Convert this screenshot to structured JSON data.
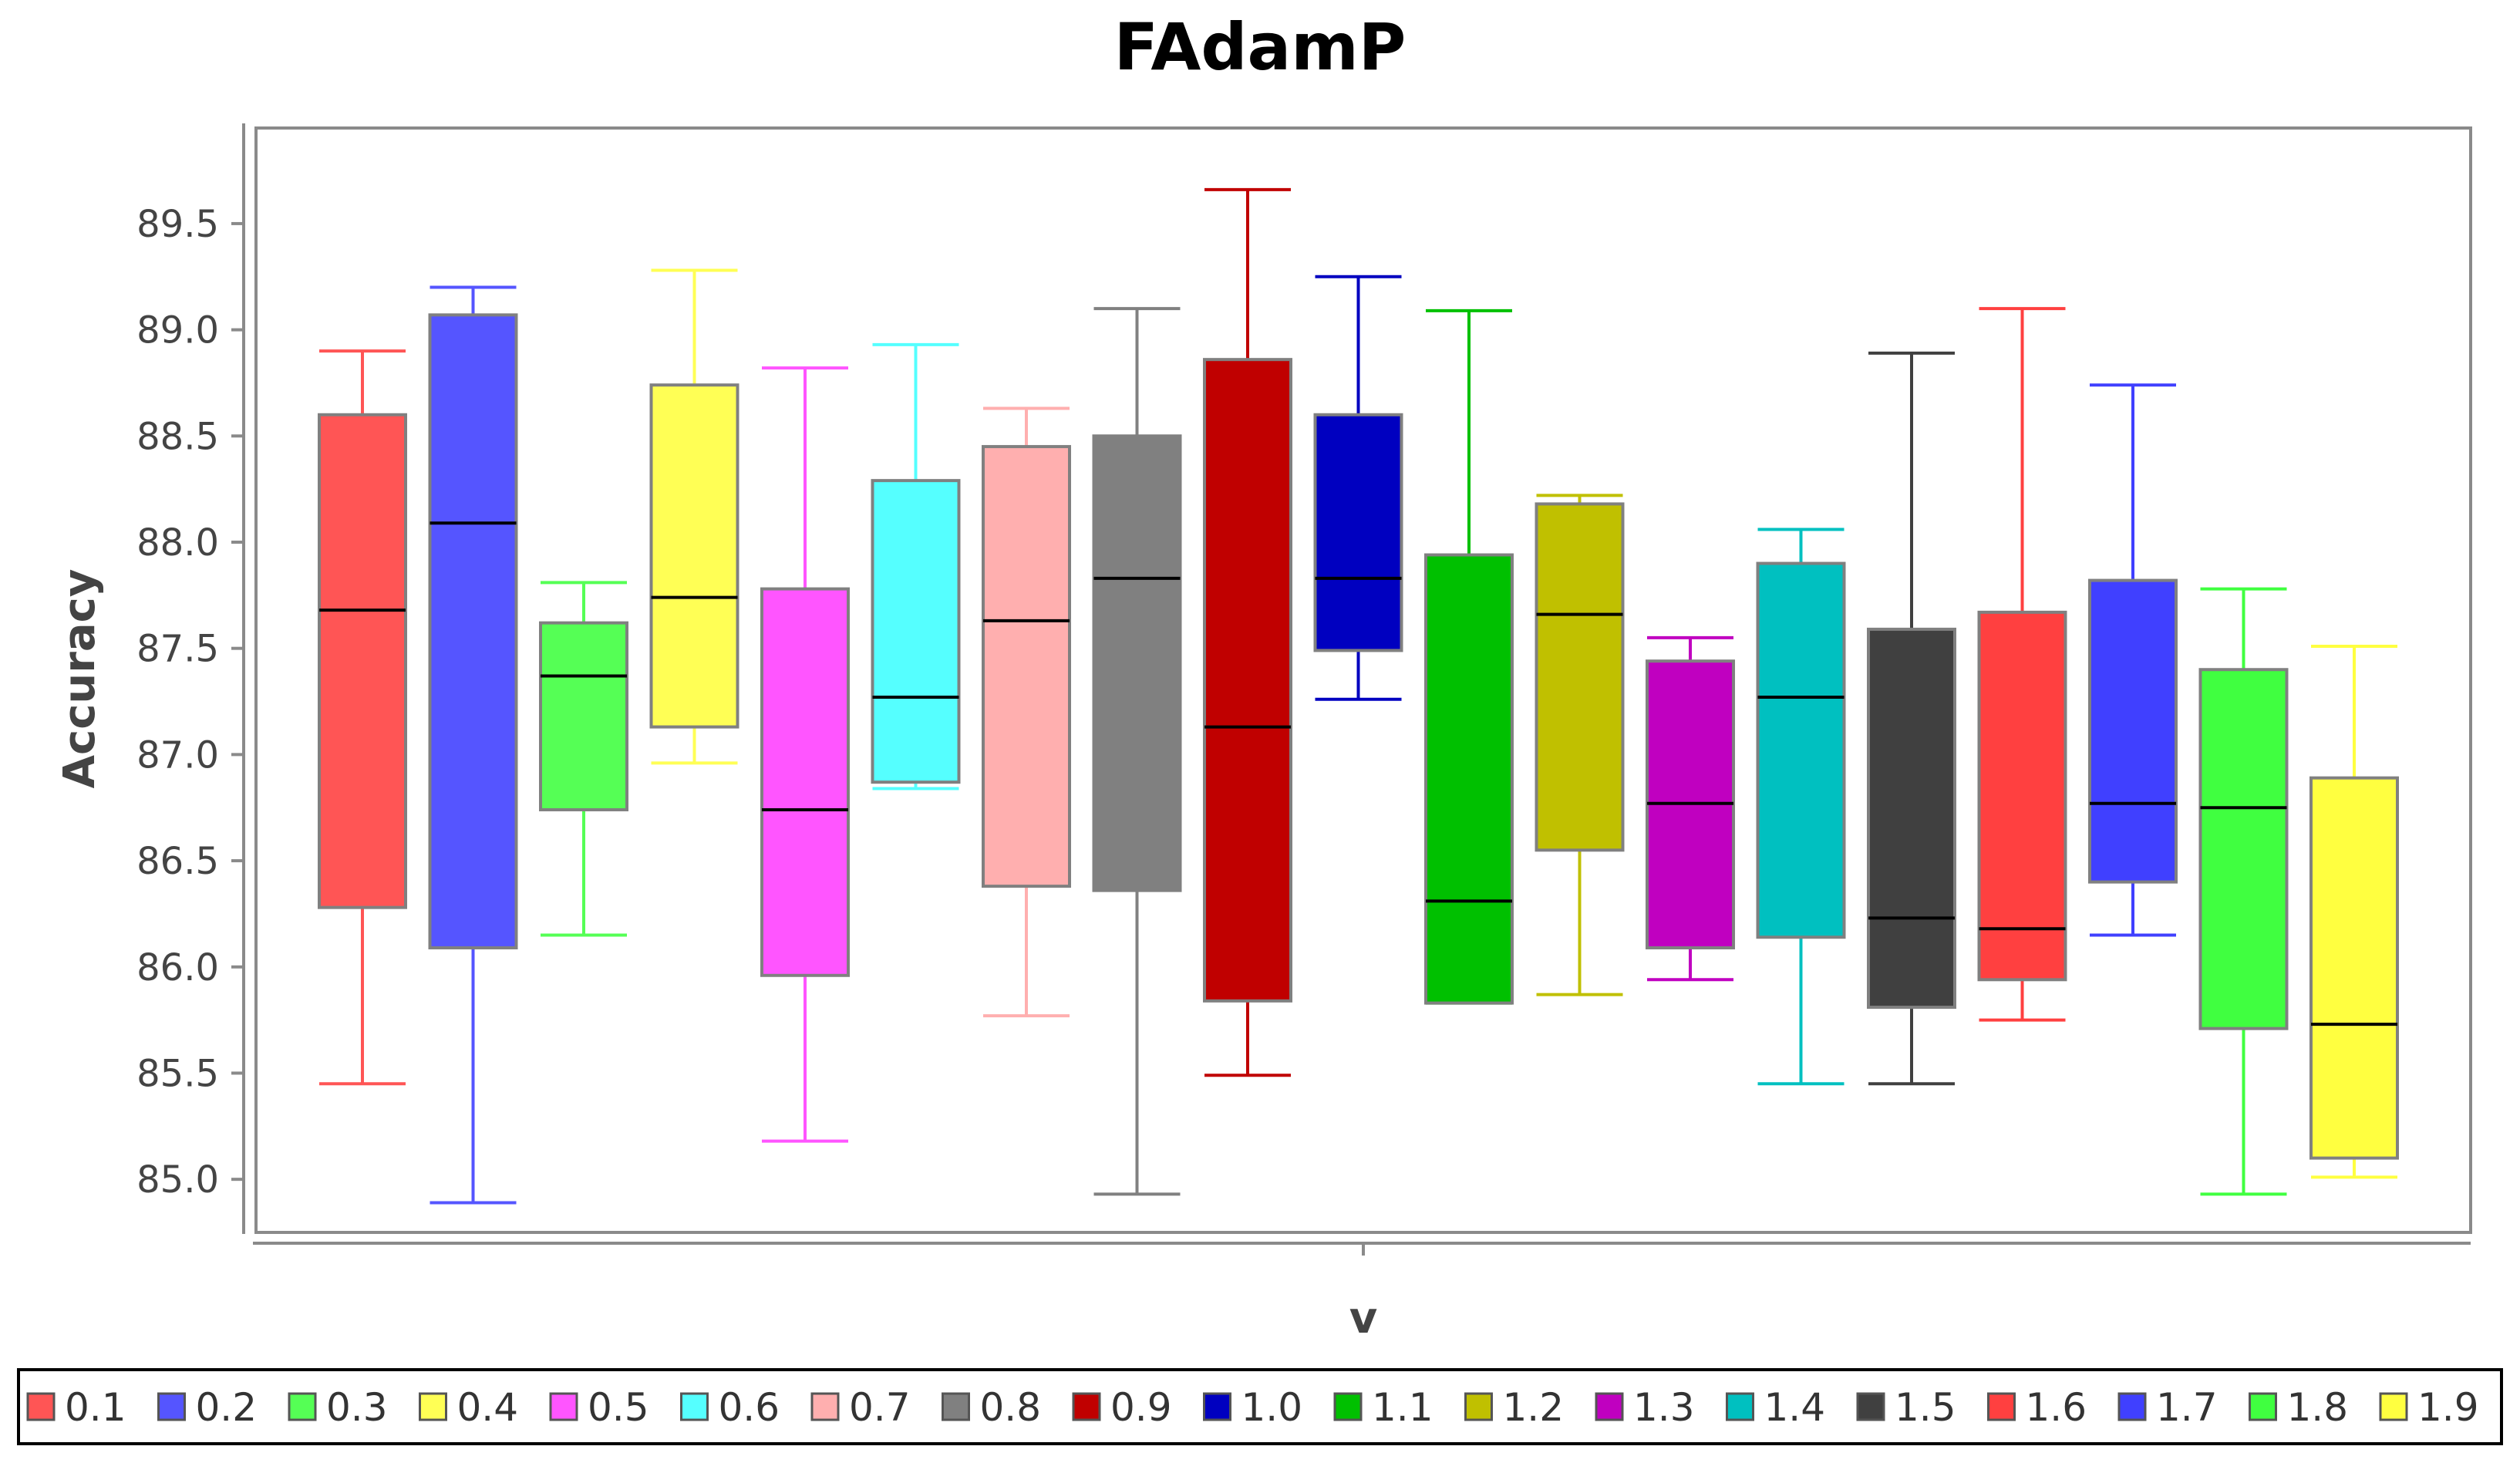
{
  "chart_data": {
    "type": "boxplot",
    "title": "FAdamP",
    "xlabel": "v",
    "ylabel": "Accuracy",
    "ylim": [
      84.75,
      89.95
    ],
    "yticks": [
      "85.0",
      "85.5",
      "86.0",
      "86.5",
      "87.0",
      "87.5",
      "88.0",
      "88.5",
      "89.0",
      "89.5"
    ],
    "legend_position": "bottom",
    "series": [
      {
        "name": "0.1",
        "color": "#ff5555",
        "min": 85.45,
        "q1": 86.28,
        "median": 87.68,
        "q3": 88.6,
        "max": 88.9
      },
      {
        "name": "0.2",
        "color": "#5555ff",
        "min": 84.89,
        "q1": 86.09,
        "median": 88.09,
        "q3": 89.07,
        "max": 89.2
      },
      {
        "name": "0.3",
        "color": "#55ff55",
        "min": 86.15,
        "q1": 86.74,
        "median": 87.37,
        "q3": 87.62,
        "max": 87.81
      },
      {
        "name": "0.4",
        "color": "#ffff55",
        "min": 86.96,
        "q1": 87.13,
        "median": 87.74,
        "q3": 88.74,
        "max": 89.28
      },
      {
        "name": "0.5",
        "color": "#ff55ff",
        "min": 85.18,
        "q1": 85.96,
        "median": 86.74,
        "q3": 87.78,
        "max": 88.82
      },
      {
        "name": "0.6",
        "color": "#55ffff",
        "min": 86.84,
        "q1": 86.87,
        "median": 87.27,
        "q3": 88.29,
        "max": 88.93
      },
      {
        "name": "0.7",
        "color": "#ffafaf",
        "min": 85.77,
        "q1": 86.38,
        "median": 87.63,
        "q3": 88.45,
        "max": 88.63
      },
      {
        "name": "0.8",
        "color": "#808080",
        "min": 84.93,
        "q1": 86.36,
        "median": 87.83,
        "q3": 88.5,
        "max": 89.1
      },
      {
        "name": "0.9",
        "color": "#c00000",
        "min": 85.49,
        "q1": 85.84,
        "median": 87.13,
        "q3": 88.86,
        "max": 89.66
      },
      {
        "name": "1.0",
        "color": "#0000c0",
        "min": 87.26,
        "q1": 87.49,
        "median": 87.83,
        "q3": 88.6,
        "max": 89.25
      },
      {
        "name": "1.1",
        "color": "#00c000",
        "min": 85.83,
        "q1": 85.83,
        "median": 86.31,
        "q3": 87.94,
        "max": 89.09
      },
      {
        "name": "1.2",
        "color": "#c0c000",
        "min": 85.87,
        "q1": 86.55,
        "median": 87.66,
        "q3": 88.18,
        "max": 88.22
      },
      {
        "name": "1.3",
        "color": "#c000c0",
        "min": 85.94,
        "q1": 86.09,
        "median": 86.77,
        "q3": 87.44,
        "max": 87.55
      },
      {
        "name": "1.4",
        "color": "#00c0c0",
        "min": 85.45,
        "q1": 86.14,
        "median": 87.27,
        "q3": 87.9,
        "max": 88.06
      },
      {
        "name": "1.5",
        "color": "#404040",
        "min": 85.45,
        "q1": 85.81,
        "median": 86.23,
        "q3": 87.59,
        "max": 88.89
      },
      {
        "name": "1.6",
        "color": "#ff4040",
        "min": 85.75,
        "q1": 85.94,
        "median": 86.18,
        "q3": 87.67,
        "max": 89.1
      },
      {
        "name": "1.7",
        "color": "#4040ff",
        "min": 86.15,
        "q1": 86.4,
        "median": 86.77,
        "q3": 87.82,
        "max": 88.74
      },
      {
        "name": "1.8",
        "color": "#40ff40",
        "min": 84.93,
        "q1": 85.71,
        "median": 86.75,
        "q3": 87.4,
        "max": 87.78
      },
      {
        "name": "1.9",
        "color": "#ffff40",
        "min": 85.01,
        "q1": 85.1,
        "median": 85.73,
        "q3": 86.89,
        "max": 87.51
      }
    ]
  }
}
